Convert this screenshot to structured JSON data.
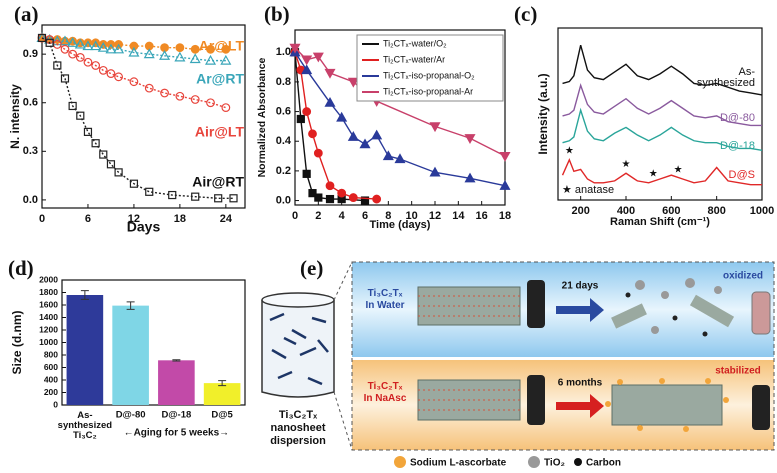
{
  "chart_data": [
    {
      "type": "scatter",
      "label": "(a)",
      "x_label": "Days",
      "y_label": "N. intensity",
      "line_style": "dotted",
      "xlim": [
        0,
        26.5
      ],
      "xticks": [
        0,
        6,
        12,
        18,
        24
      ],
      "ylim": [
        -0.05,
        1.08
      ],
      "yticks": [
        {
          "value": 0,
          "label": "0.0"
        },
        0.3,
        0.6,
        0.9
      ],
      "series": [
        {
          "name": "Ar@LT",
          "color": "#f08a24",
          "marker": "circle-filled",
          "x": [
            0,
            1,
            2,
            3,
            4,
            5,
            6,
            7,
            8,
            9,
            10,
            12,
            14,
            16,
            18,
            20,
            22,
            24
          ],
          "values": [
            1.0,
            0.99,
            0.99,
            0.98,
            0.98,
            0.97,
            0.97,
            0.97,
            0.96,
            0.96,
            0.96,
            0.95,
            0.95,
            0.94,
            0.94,
            0.93,
            0.93,
            0.93
          ]
        },
        {
          "name": "Ar@RT",
          "color": "#3aa6b9",
          "marker": "triangle-open",
          "x": [
            0,
            1,
            2,
            3,
            4,
            5,
            6,
            7,
            8,
            9,
            10,
            12,
            14,
            16,
            18,
            20,
            22,
            24
          ],
          "values": [
            1.0,
            0.99,
            0.98,
            0.98,
            0.97,
            0.96,
            0.95,
            0.95,
            0.94,
            0.93,
            0.93,
            0.91,
            0.9,
            0.89,
            0.88,
            0.87,
            0.86,
            0.86
          ]
        },
        {
          "name": "Air@LT",
          "color": "#e8453c",
          "marker": "circle-open",
          "x": [
            0,
            1,
            2,
            3,
            4,
            5,
            6,
            7,
            8,
            9,
            10,
            12,
            14,
            16,
            18,
            20,
            22,
            24
          ],
          "values": [
            1.0,
            0.99,
            0.96,
            0.93,
            0.9,
            0.88,
            0.85,
            0.83,
            0.8,
            0.78,
            0.76,
            0.73,
            0.69,
            0.66,
            0.64,
            0.62,
            0.6,
            0.57
          ]
        },
        {
          "name": "Air@RT",
          "color": "#222222",
          "marker": "square-open",
          "x": [
            0,
            1,
            2,
            3,
            4,
            5,
            6,
            7,
            8,
            9,
            10,
            12,
            14,
            17,
            20,
            23,
            25
          ],
          "values": [
            1.0,
            0.97,
            0.83,
            0.75,
            0.58,
            0.52,
            0.42,
            0.35,
            0.28,
            0.22,
            0.17,
            0.1,
            0.05,
            0.03,
            0.02,
            0.01,
            0.01
          ]
        }
      ]
    },
    {
      "type": "scatter",
      "label": "(b)",
      "x_label": "Time (days)",
      "y_label": "Normalized Absorbance",
      "line_style": "solid",
      "xlim": [
        0,
        18
      ],
      "xticks": [
        0,
        2,
        4,
        6,
        8,
        10,
        12,
        14,
        16,
        18
      ],
      "ylim": [
        -0.03,
        1.15
      ],
      "yticks": [
        {
          "value": 0,
          "label": "0.0"
        },
        0.2,
        0.4,
        0.6,
        0.8,
        {
          "value": 1,
          "label": "1.0"
        }
      ],
      "series": [
        {
          "name": "Ti₂CTₓ-water/O₂",
          "color": "#111111",
          "marker": "square-filled",
          "x": [
            0,
            0.5,
            1,
            1.5,
            2,
            3,
            4,
            6
          ],
          "values": [
            1.0,
            0.55,
            0.18,
            0.05,
            0.02,
            0.01,
            0.01,
            0.0
          ]
        },
        {
          "name": "Ti₂CTₓ-water/Ar",
          "color": "#e02020",
          "marker": "circle-filled",
          "x": [
            0,
            0.5,
            1,
            1.5,
            2,
            3,
            4,
            5,
            7
          ],
          "values": [
            1.0,
            0.88,
            0.6,
            0.45,
            0.32,
            0.1,
            0.05,
            0.02,
            0.01
          ]
        },
        {
          "name": "Ti₂CTₓ-iso-propanal-O₂",
          "color": "#2a3a9a",
          "marker": "triangle-filled",
          "x": [
            0,
            1,
            3,
            4,
            5,
            6,
            7,
            8,
            9,
            12,
            15,
            18
          ],
          "values": [
            1.0,
            0.88,
            0.66,
            0.56,
            0.43,
            0.38,
            0.44,
            0.3,
            0.28,
            0.19,
            0.15,
            0.1
          ]
        },
        {
          "name": "Ti₂CTₓ-iso-propanal-Ar",
          "color": "#c8406a",
          "marker": "triangledown-filled",
          "x": [
            0,
            1,
            2,
            3,
            5,
            7,
            12,
            15,
            18
          ],
          "values": [
            1.03,
            0.95,
            0.97,
            0.86,
            0.8,
            0.67,
            0.5,
            0.42,
            0.3
          ]
        }
      ]
    },
    {
      "type": "line",
      "label": "(c)",
      "x_label": "Raman Shift (cm⁻¹)",
      "y_label": "Intensity (a.u.)",
      "xlim": [
        100,
        1000
      ],
      "xticks": [
        200,
        400,
        600,
        800,
        1000
      ],
      "ylim": [
        1.5,
        10.5
      ],
      "x": [
        120,
        150,
        170,
        200,
        230,
        260,
        300,
        350,
        400,
        450,
        500,
        550,
        600,
        650,
        700,
        750,
        800,
        850,
        900,
        950,
        1000
      ],
      "series": [
        {
          "name": "As-\nsynthesized",
          "color": "#111111",
          "values": [
            7.6,
            7.7,
            8.0,
            9.6,
            8.3,
            7.9,
            7.8,
            8.2,
            8.6,
            8.0,
            7.8,
            8.1,
            8.5,
            8.1,
            7.6,
            7.5,
            7.6,
            7.4,
            7.2,
            7.1,
            7.0
          ]
        },
        {
          "name": "D@-80",
          "color": "#8a5a9e",
          "values": [
            5.9,
            6.0,
            6.2,
            7.5,
            6.5,
            6.1,
            6.0,
            6.4,
            6.8,
            6.3,
            6.0,
            6.3,
            6.7,
            6.3,
            5.9,
            5.8,
            5.9,
            5.6,
            5.5,
            5.4,
            5.4
          ]
        },
        {
          "name": "D@-18",
          "color": "#2aa59a",
          "values": [
            4.5,
            4.6,
            4.8,
            6.2,
            5.1,
            4.7,
            4.6,
            5.0,
            5.3,
            4.9,
            4.6,
            4.9,
            5.3,
            4.9,
            4.6,
            4.5,
            4.5,
            4.3,
            4.2,
            4.2,
            4.1
          ]
        },
        {
          "name": "D@S",
          "color": "#e02828",
          "values": [
            2.8,
            3.6,
            3.0,
            3.1,
            2.6,
            2.4,
            2.4,
            2.5,
            2.9,
            2.5,
            2.4,
            2.6,
            2.8,
            2.6,
            2.4,
            2.5,
            3.2,
            2.5,
            2.4,
            2.3,
            2.3
          ]
        }
      ],
      "annotation": "★ anatase",
      "anatase_peaks": [
        150,
        400,
        520,
        630
      ],
      "peak_symbol": "★"
    },
    {
      "type": "bar",
      "label": "(d)",
      "y_label": "Size (d.nm)",
      "note": "←Aging for 5 weeks→",
      "categories": [
        "As-\nsynthesized\nTi₃C₂",
        "D@-80",
        "D@-18",
        "D@5"
      ],
      "values": [
        1760,
        1590,
        715,
        350
      ],
      "errors": [
        70,
        60,
        10,
        40
      ],
      "colors": [
        "#2e3a9a",
        "#7fd6e6",
        "#c24aa8",
        "#f1ef2a"
      ],
      "ylim": [
        0,
        2000
      ],
      "yticks": [
        0,
        200,
        400,
        600,
        800,
        1000,
        1200,
        1400,
        1600,
        1800,
        2000
      ]
    }
  ],
  "diagram": {
    "label": "(e)",
    "beaker_caption": "Ti₃C₂Tₓ\nnanosheet\ndispersion",
    "rows": [
      {
        "sample": "Ti₃C₂Tₓ\nIn Water",
        "duration": "21 days",
        "result": "oxidized"
      },
      {
        "sample": "Ti₃C₂Tₓ\nIn NaAsc",
        "duration": "6 months",
        "result": "stabilized"
      }
    ],
    "legend": [
      "Sodium L-ascorbate",
      "TiO₂",
      "Carbon"
    ]
  }
}
